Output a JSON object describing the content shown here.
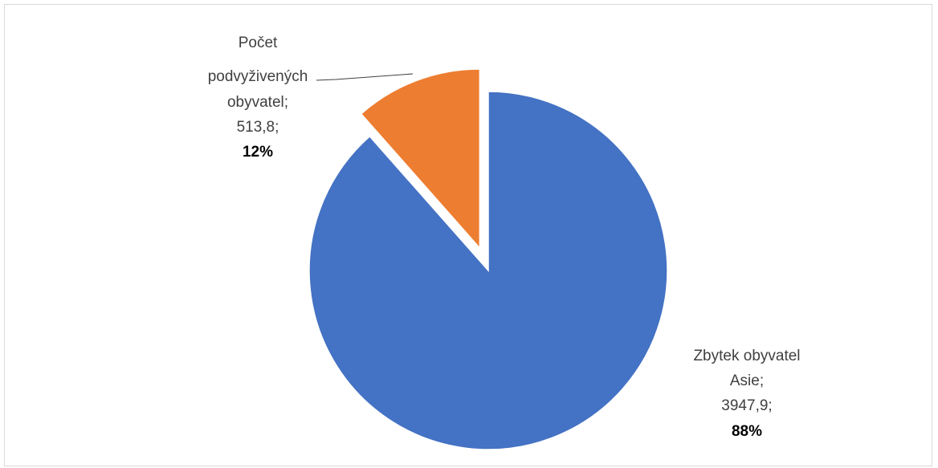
{
  "chart_data": {
    "type": "pie",
    "slices": [
      {
        "name": "Zbytek obyvatel Asie",
        "label_lines": [
          "Zbytek obyvatel",
          "Asie;"
        ],
        "value": 3947.9,
        "value_text": "3947,9;",
        "percent": 88,
        "percent_text": "88%",
        "color": "#4472C4",
        "exploded": false
      },
      {
        "name": "Počet podvyživených obyvatel",
        "label_lines": [
          "Počet",
          "podvyživených",
          "obyvatel;"
        ],
        "value": 513.8,
        "value_text": "513,8;",
        "percent": 12,
        "percent_text": "12%",
        "color": "#ED7D31",
        "exploded": true
      }
    ],
    "title": "",
    "legend": "none"
  }
}
